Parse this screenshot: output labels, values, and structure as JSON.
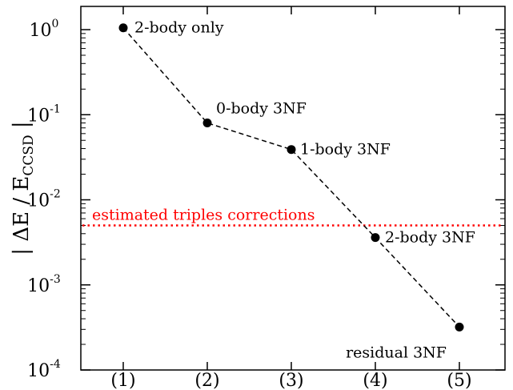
{
  "chart_data": {
    "type": "line",
    "yscale": "log",
    "ylim": [
      0.0001,
      2
    ],
    "xlim": [
      0.5,
      5.5
    ],
    "ylabel": {
      "prefix": "| ΔE / E",
      "subscript": "CCSD",
      "suffix": " |"
    },
    "x_tick_labels": [
      "(1)",
      "(2)",
      "(3)",
      "(4)",
      "(5)"
    ],
    "y_ticks": [
      {
        "value": 1,
        "base": "10",
        "exp": "0"
      },
      {
        "value": 0.1,
        "base": "10",
        "exp": "-1"
      },
      {
        "value": 0.01,
        "base": "10",
        "exp": "-2"
      },
      {
        "value": 0.001,
        "base": "10",
        "exp": "-3"
      },
      {
        "value": 0.0001,
        "base": "10",
        "exp": "-4"
      }
    ],
    "series": [
      {
        "x": [
          1,
          2,
          3,
          4,
          5
        ],
        "y": [
          1.05,
          0.08,
          0.039,
          0.0036,
          0.00032
        ],
        "point_labels": [
          "2-body only",
          "0-body 3NF",
          "1-body 3NF",
          "2-body 3NF",
          "residual 3NF"
        ],
        "color": "#000000",
        "line_style": "dashed"
      }
    ],
    "reference_line": {
      "y": 0.005,
      "label": "estimated triples corrections",
      "color": "#ff0000",
      "line_style": "dotted"
    },
    "grid": false,
    "legend": "none"
  }
}
